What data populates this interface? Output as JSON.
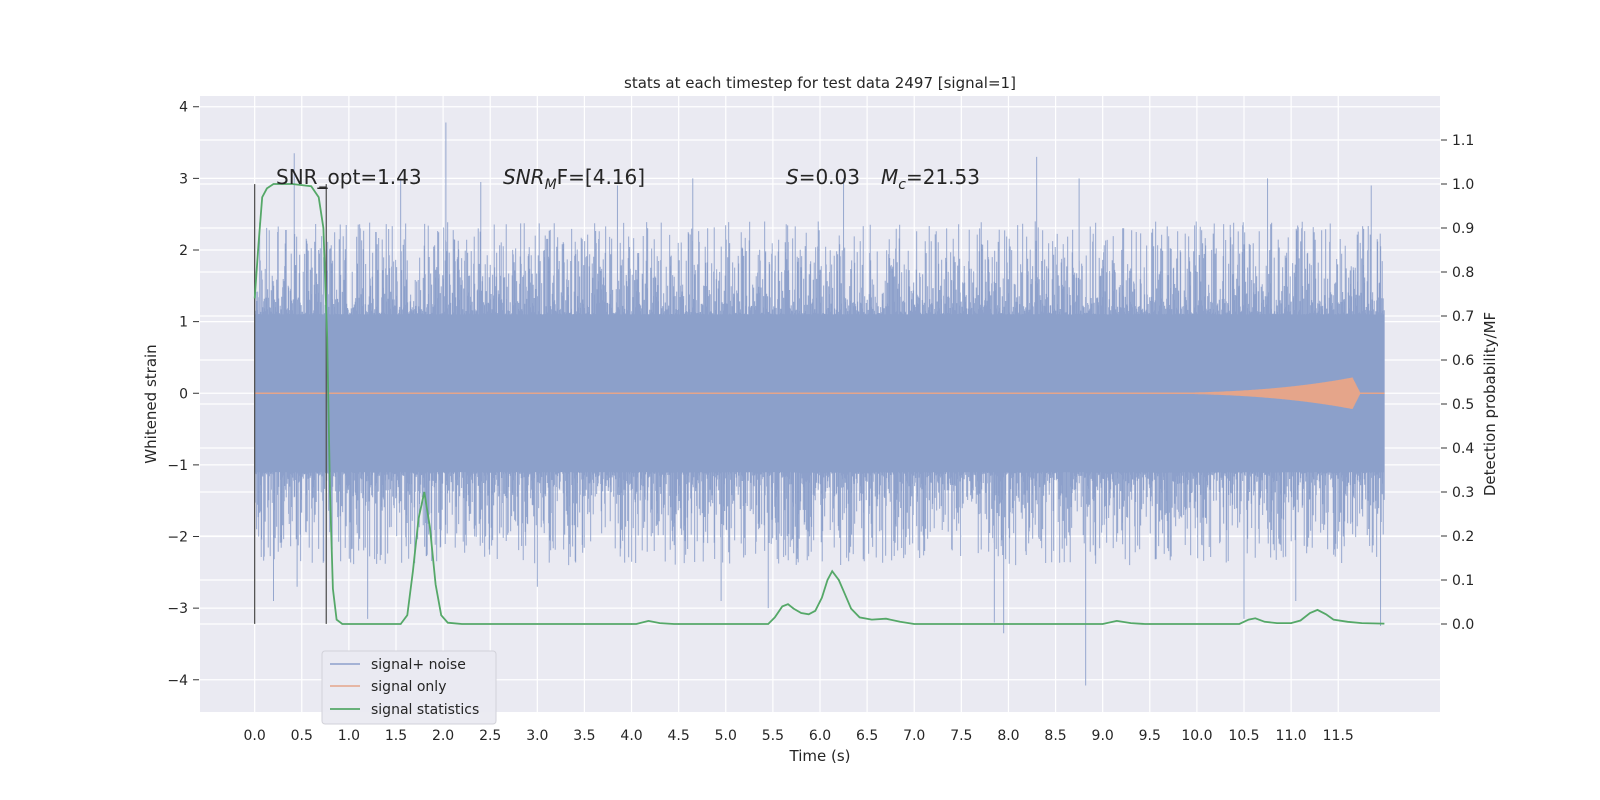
{
  "chart_data": {
    "type": "line",
    "title": "stats at each timestep for test data 2497 [signal=1]",
    "xlabel": "Time (s)",
    "ylabel_left": "Whitened strain",
    "ylabel_right": "Detection probability/MF",
    "xlim": [
      -0.58,
      12.58
    ],
    "ylim_left": [
      -4.45,
      4.15
    ],
    "ylim_right": [
      -0.2,
      1.2
    ],
    "x_ticks": [
      0.0,
      0.5,
      1.0,
      1.5,
      2.0,
      2.5,
      3.0,
      3.5,
      4.0,
      4.5,
      5.0,
      5.5,
      6.0,
      6.5,
      7.0,
      7.5,
      8.0,
      8.5,
      9.0,
      9.5,
      10.0,
      10.5,
      11.0,
      11.5
    ],
    "x_tick_labels": [
      "0.0",
      "0.5",
      "1.0",
      "1.5",
      "2.0",
      "2.5",
      "3.0",
      "3.5",
      "4.0",
      "4.5",
      "5.0",
      "5.5",
      "6.0",
      "6.5",
      "7.0",
      "7.5",
      "8.0",
      "8.5",
      "9.0",
      "9.5",
      "10.0",
      "10.5",
      "11.0",
      "11.5"
    ],
    "y_left_ticks": [
      -4,
      -3,
      -2,
      -1,
      0,
      1,
      2,
      3,
      4
    ],
    "y_left_tick_labels": [
      "−4",
      "−3",
      "−2",
      "−1",
      "0",
      "1",
      "2",
      "3",
      "4"
    ],
    "y_right_ticks": [
      0.0,
      0.1,
      0.2,
      0.3,
      0.4,
      0.5,
      0.6,
      0.7,
      0.8,
      0.9,
      1.0,
      1.1
    ],
    "y_right_tick_labels": [
      "0.0",
      "0.1",
      "0.2",
      "0.3",
      "0.4",
      "0.5",
      "0.6",
      "0.7",
      "0.8",
      "0.9",
      "1.0",
      "1.1"
    ],
    "grid": true,
    "legend_position": "lower-left",
    "series": [
      {
        "name": "signal+ noise",
        "axis": "left",
        "color": "#8da0cb",
        "x_range": [
          0.0,
          11.99
        ],
        "typical_band": [
          -1.1,
          1.1
        ],
        "peaks": [
          {
            "x": 0.42,
            "y": 3.35
          },
          {
            "x": 2.03,
            "y": 3.78
          },
          {
            "x": 4.65,
            "y": 3.0
          },
          {
            "x": 6.25,
            "y": 3.0
          },
          {
            "x": 8.3,
            "y": 3.3
          },
          {
            "x": 8.75,
            "y": 3.0
          },
          {
            "x": 10.75,
            "y": 3.0
          },
          {
            "x": 11.85,
            "y": 2.9
          },
          {
            "x": 1.55,
            "y": 3.0
          },
          {
            "x": 3.85,
            "y": 2.9
          },
          {
            "x": 2.4,
            "y": 2.95
          },
          {
            "x": 0.2,
            "y": -2.9
          },
          {
            "x": 0.45,
            "y": -2.7
          },
          {
            "x": 1.2,
            "y": -3.15
          },
          {
            "x": 3.0,
            "y": -2.7
          },
          {
            "x": 4.95,
            "y": -2.9
          },
          {
            "x": 5.45,
            "y": -3.0
          },
          {
            "x": 7.85,
            "y": -3.2
          },
          {
            "x": 7.95,
            "y": -3.35
          },
          {
            "x": 8.82,
            "y": -4.08
          },
          {
            "x": 10.5,
            "y": -3.15
          },
          {
            "x": 11.05,
            "y": -2.9
          },
          {
            "x": 11.95,
            "y": -3.25
          }
        ]
      },
      {
        "name": "signal only",
        "axis": "left",
        "color": "#e5a58a",
        "x_range": [
          0.0,
          11.99
        ],
        "chirp_start": 9.0,
        "chirp_peak_time": 11.65,
        "chirp_peak_amplitude": 0.22
      },
      {
        "name": "signal statistics",
        "axis": "right",
        "color": "#55a868",
        "points": [
          [
            0.0,
            0.74
          ],
          [
            0.04,
            0.86
          ],
          [
            0.08,
            0.97
          ],
          [
            0.13,
            0.99
          ],
          [
            0.2,
            1.0
          ],
          [
            0.4,
            1.0
          ],
          [
            0.6,
            0.995
          ],
          [
            0.68,
            0.97
          ],
          [
            0.73,
            0.9
          ],
          [
            0.77,
            0.65
          ],
          [
            0.8,
            0.3
          ],
          [
            0.83,
            0.08
          ],
          [
            0.87,
            0.01
          ],
          [
            0.93,
            0.0
          ],
          [
            1.55,
            0.0
          ],
          [
            1.62,
            0.02
          ],
          [
            1.68,
            0.12
          ],
          [
            1.74,
            0.24
          ],
          [
            1.8,
            0.3
          ],
          [
            1.86,
            0.22
          ],
          [
            1.92,
            0.09
          ],
          [
            1.98,
            0.02
          ],
          [
            2.05,
            0.003
          ],
          [
            2.2,
            0.0
          ],
          [
            4.05,
            0.0
          ],
          [
            4.18,
            0.007
          ],
          [
            4.3,
            0.002
          ],
          [
            4.45,
            0.0
          ],
          [
            5.45,
            0.0
          ],
          [
            5.52,
            0.015
          ],
          [
            5.6,
            0.04
          ],
          [
            5.66,
            0.045
          ],
          [
            5.72,
            0.035
          ],
          [
            5.8,
            0.025
          ],
          [
            5.88,
            0.022
          ],
          [
            5.95,
            0.03
          ],
          [
            6.02,
            0.06
          ],
          [
            6.08,
            0.1
          ],
          [
            6.13,
            0.12
          ],
          [
            6.2,
            0.1
          ],
          [
            6.26,
            0.07
          ],
          [
            6.33,
            0.035
          ],
          [
            6.42,
            0.015
          ],
          [
            6.55,
            0.01
          ],
          [
            6.7,
            0.012
          ],
          [
            6.85,
            0.005
          ],
          [
            7.0,
            0.0
          ],
          [
            9.0,
            0.0
          ],
          [
            9.15,
            0.007
          ],
          [
            9.3,
            0.002
          ],
          [
            9.45,
            0.0
          ],
          [
            10.45,
            0.0
          ],
          [
            10.55,
            0.01
          ],
          [
            10.62,
            0.013
          ],
          [
            10.72,
            0.005
          ],
          [
            10.85,
            0.002
          ],
          [
            11.0,
            0.002
          ],
          [
            11.1,
            0.008
          ],
          [
            11.2,
            0.025
          ],
          [
            11.28,
            0.032
          ],
          [
            11.37,
            0.022
          ],
          [
            11.45,
            0.01
          ],
          [
            11.6,
            0.005
          ],
          [
            11.75,
            0.002
          ],
          [
            11.99,
            0.001
          ]
        ]
      }
    ],
    "vertical_markers": [
      {
        "x": 0.0,
        "y_range": [
          -3.22,
          2.92
        ]
      },
      {
        "x": 0.76,
        "y_range": [
          -3.22,
          2.92
        ]
      }
    ],
    "bracket_tick_x": 0.76,
    "annotations": {
      "snr_opt": "SNR_opt=1.43",
      "snr_mf_sym": "SNR",
      "snr_mf_sub": "M",
      "snr_mf_rest": "F=[4.16]",
      "s_sym": "S",
      "s_rest": "=0.03",
      "mc_sym": "M",
      "mc_sub": "c",
      "mc_rest": "=21.53"
    }
  }
}
